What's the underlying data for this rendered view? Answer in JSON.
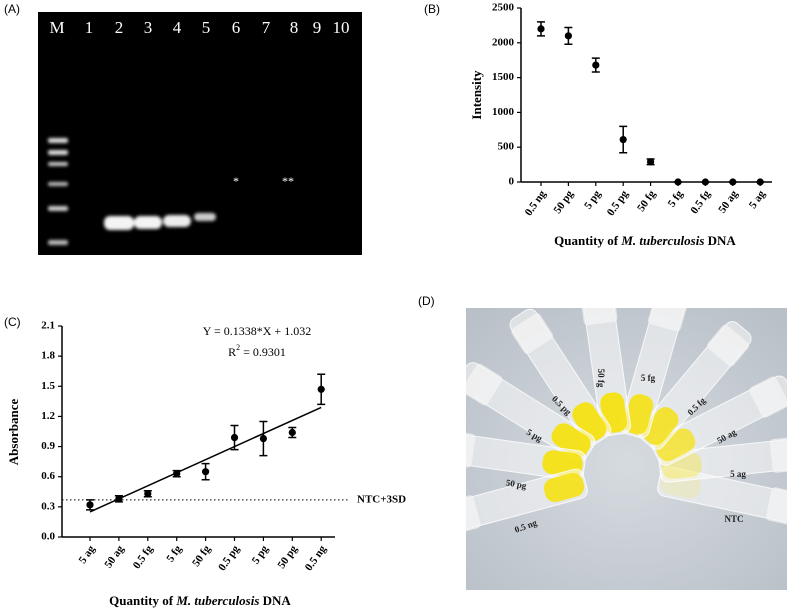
{
  "panels": {
    "a": "(A)",
    "b": "(B)",
    "c": "(C)",
    "d": "(D)"
  },
  "gel": {
    "lanes": [
      "M",
      "1",
      "2",
      "3",
      "4",
      "5",
      "6",
      "7",
      "8",
      "9",
      "10"
    ],
    "annotations": [
      "*",
      "**"
    ]
  },
  "chart_data": [
    {
      "type": "scatter",
      "y_label": "Intensity",
      "x_label": {
        "prefix": "Quantity of ",
        "italic": "M. tuberculosis",
        "suffix": " DNA"
      },
      "categories": [
        "0.5 ng",
        "50 pg",
        "5 pg",
        "0.5 pg",
        "50 fg",
        "5 fg",
        "0.5 fg",
        "50 ag",
        "5 ag"
      ],
      "values": [
        2200,
        2100,
        1680,
        610,
        290,
        0,
        0,
        0,
        0
      ],
      "errors": [
        100,
        120,
        100,
        190,
        40,
        0,
        0,
        0,
        0
      ],
      "ylim": [
        0,
        2500
      ],
      "yticks": [
        0,
        500,
        1000,
        1500,
        2000,
        2500
      ],
      "color": "#000000"
    },
    {
      "type": "scatter",
      "y_label": "Absorbance",
      "x_label": {
        "prefix": "Quantity of ",
        "italic": "M. tuberculosis",
        "suffix": " DNA"
      },
      "categories": [
        "5 ag",
        "50 ag",
        "0.5 fg",
        "5 fg",
        "50 fg",
        "0.5 pg",
        "5 pg",
        "50 pg",
        "0.5 ng"
      ],
      "values": [
        0.32,
        0.38,
        0.43,
        0.63,
        0.65,
        0.99,
        0.98,
        1.04,
        1.47
      ],
      "errors": [
        0.05,
        0.03,
        0.03,
        0.03,
        0.08,
        0.12,
        0.17,
        0.05,
        0.15
      ],
      "ylim": [
        0,
        2.1
      ],
      "yticks": [
        {
          "value": 0,
          "label": "0.0"
        },
        0.3,
        0.6,
        0.9,
        1.2,
        1.5,
        1.8,
        2.1
      ],
      "color": "#000000",
      "fit": {
        "values": [
          0.25,
          1.29
        ]
      },
      "threshold": {
        "value": 0.37,
        "label": "NTC+3SD"
      },
      "equation": "Y = 0.1338*X + 1.032",
      "r2": {
        "prefix": "R",
        "sup": "2",
        "suffix": " = 0.9301"
      }
    }
  ],
  "photo": {
    "labels": [
      "NTC",
      "5 ag",
      "50 ag",
      "0.5 fg",
      "5 fg",
      "50 fg",
      "0.5 pg",
      "5 pg",
      "50 pg",
      "0.5 ng"
    ]
  }
}
